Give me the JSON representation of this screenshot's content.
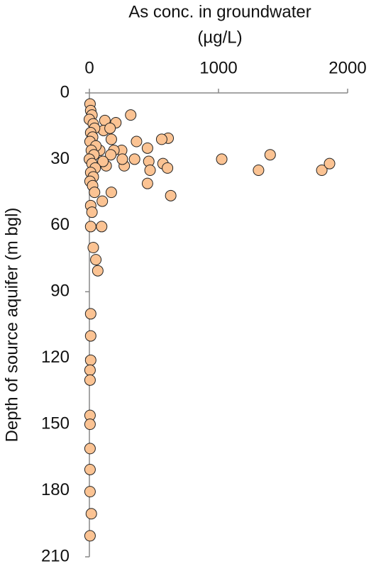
{
  "chart_data": {
    "type": "scatter",
    "xlabel": [
      "As conc. in groundwater",
      "(µg/L)"
    ],
    "ylabel": "Depth of source aquifer (m bgl)",
    "xlim": [
      0,
      2000
    ],
    "xticks": [
      0,
      1000,
      2000
    ],
    "ylim": [
      0,
      210
    ],
    "yticks": [
      0,
      30,
      60,
      90,
      120,
      150,
      180,
      210
    ],
    "y_inverted": true,
    "x_axis_position": "top",
    "series": [
      {
        "color": "#fbc393",
        "x": [
          1025,
          1400,
          1310,
          1800,
          1860,
          320,
          630,
          610,
          560,
          570,
          605,
          450,
          460,
          470,
          450,
          365,
          350,
          270,
          250,
          255,
          190,
          170,
          205,
          120,
          110,
          160,
          165,
          130,
          80,
          105,
          170,
          100,
          10,
          20,
          10,
          95,
          30,
          50,
          65,
          10,
          10,
          10,
          5,
          5,
          5,
          5,
          5,
          5,
          5,
          15,
          5,
          5,
          10,
          20,
          0,
          30,
          40,
          10,
          25,
          5,
          50,
          15,
          35,
          0,
          20,
          45,
          10,
          30,
          5,
          25,
          40
        ],
        "y": [
          30,
          28,
          35,
          35,
          32,
          10,
          46.5,
          20.5,
          21,
          32,
          34,
          25,
          31,
          35,
          41,
          22,
          30,
          33,
          26,
          30,
          26,
          21,
          13.5,
          12.5,
          17,
          16,
          28,
          33,
          26,
          31,
          45,
          49,
          51,
          54,
          60.5,
          60.5,
          70,
          75.5,
          80.5,
          100,
          110,
          121,
          125.5,
          130,
          146,
          150,
          161,
          170.5,
          180.5,
          190.5,
          200.5,
          5,
          8,
          10,
          12,
          14,
          16,
          18,
          20,
          22,
          24,
          26,
          28,
          30,
          32,
          34,
          36,
          38,
          40,
          42,
          45
        ]
      }
    ]
  }
}
